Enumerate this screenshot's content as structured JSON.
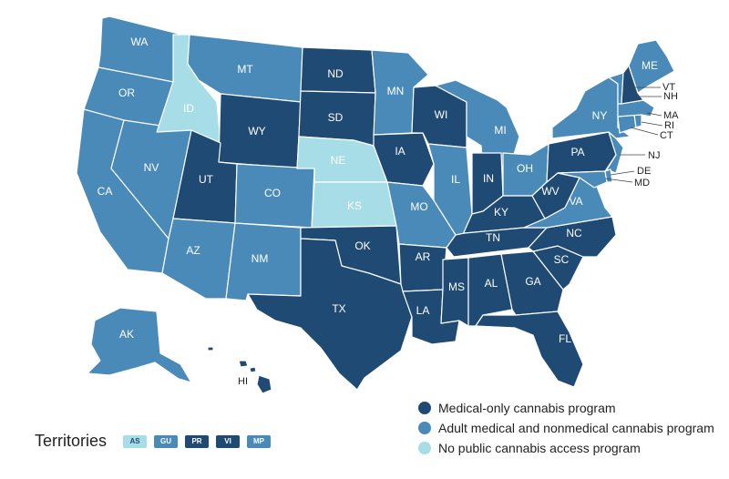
{
  "colors": {
    "medical": "#1f4a73",
    "adult": "#4a8ab8",
    "none": "#a6dde6",
    "border": "#ffffff"
  },
  "states": {
    "WA": {
      "label": "WA",
      "status": "adult"
    },
    "OR": {
      "label": "OR",
      "status": "adult"
    },
    "CA": {
      "label": "CA",
      "status": "adult"
    },
    "NV": {
      "label": "NV",
      "status": "adult"
    },
    "ID": {
      "label": "ID",
      "status": "none"
    },
    "MT": {
      "label": "MT",
      "status": "adult"
    },
    "WY": {
      "label": "WY",
      "status": "medical"
    },
    "UT": {
      "label": "UT",
      "status": "medical"
    },
    "AZ": {
      "label": "AZ",
      "status": "adult"
    },
    "CO": {
      "label": "CO",
      "status": "adult"
    },
    "NM": {
      "label": "NM",
      "status": "adult"
    },
    "ND": {
      "label": "ND",
      "status": "medical"
    },
    "SD": {
      "label": "SD",
      "status": "medical"
    },
    "NE": {
      "label": "NE",
      "status": "none"
    },
    "KS": {
      "label": "KS",
      "status": "none"
    },
    "OK": {
      "label": "OK",
      "status": "medical"
    },
    "TX": {
      "label": "TX",
      "status": "medical"
    },
    "MN": {
      "label": "MN",
      "status": "adult"
    },
    "IA": {
      "label": "IA",
      "status": "medical"
    },
    "MO": {
      "label": "MO",
      "status": "adult"
    },
    "AR": {
      "label": "AR",
      "status": "medical"
    },
    "LA": {
      "label": "LA",
      "status": "medical"
    },
    "WI": {
      "label": "WI",
      "status": "medical"
    },
    "IL": {
      "label": "IL",
      "status": "adult"
    },
    "MI": {
      "label": "MI",
      "status": "adult"
    },
    "IN": {
      "label": "IN",
      "status": "medical"
    },
    "OH": {
      "label": "OH",
      "status": "adult"
    },
    "KY": {
      "label": "KY",
      "status": "medical"
    },
    "TN": {
      "label": "TN",
      "status": "medical"
    },
    "MS": {
      "label": "MS",
      "status": "medical"
    },
    "AL": {
      "label": "AL",
      "status": "medical"
    },
    "GA": {
      "label": "GA",
      "status": "medical"
    },
    "FL": {
      "label": "FL",
      "status": "medical"
    },
    "SC": {
      "label": "SC",
      "status": "medical"
    },
    "NC": {
      "label": "NC",
      "status": "medical"
    },
    "VA": {
      "label": "VA",
      "status": "adult"
    },
    "WV": {
      "label": "WV",
      "status": "medical"
    },
    "PA": {
      "label": "PA",
      "status": "medical"
    },
    "NY": {
      "label": "NY",
      "status": "adult"
    },
    "NJ": {
      "label": "NJ",
      "status": "adult"
    },
    "DE": {
      "label": "DE",
      "status": "adult"
    },
    "MD": {
      "label": "MD",
      "status": "adult"
    },
    "CT": {
      "label": "CT",
      "status": "adult"
    },
    "RI": {
      "label": "RI",
      "status": "adult"
    },
    "MA": {
      "label": "MA",
      "status": "adult"
    },
    "VT": {
      "label": "VT",
      "status": "adult"
    },
    "NH": {
      "label": "NH",
      "status": "medical"
    },
    "ME": {
      "label": "ME",
      "status": "adult"
    },
    "AK": {
      "label": "AK",
      "status": "adult"
    },
    "HI": {
      "label": "HI",
      "status": "medical"
    }
  },
  "legend": {
    "medical": "Medical-only cannabis program",
    "adult": "Adult medical and nonmedical cannabis program",
    "none": "No public cannabis access program"
  },
  "territories": {
    "title": "Territories",
    "items": [
      {
        "label": "AS",
        "status": "none"
      },
      {
        "label": "GU",
        "status": "adult"
      },
      {
        "label": "PR",
        "status": "medical"
      },
      {
        "label": "VI",
        "status": "medical"
      },
      {
        "label": "MP",
        "status": "adult"
      }
    ]
  }
}
